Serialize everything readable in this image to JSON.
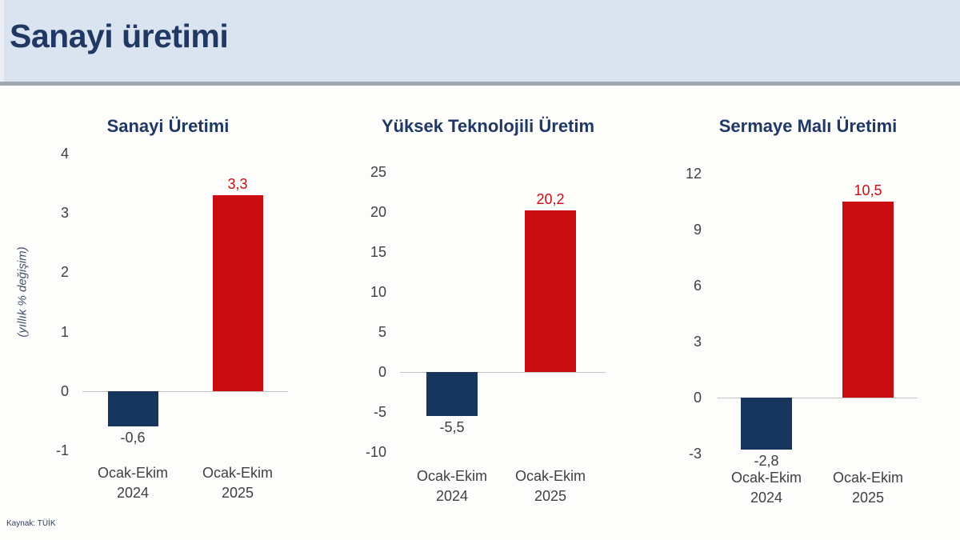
{
  "header": {
    "title": "Sanayi üretimi"
  },
  "footer": {
    "source": "Kaynak: TÜİK"
  },
  "colors": {
    "header_bg": "#dae3f0",
    "header_border": "#a0a8b0",
    "title_navy": "#1f3864",
    "bar_navy": "#17365d",
    "bar_red": "#c90d11",
    "data_label_gray": "#404040",
    "axis_tick_gray": "#404040",
    "zero_line_gray": "#c6c6c6"
  },
  "chart_data": [
    {
      "type": "bar",
      "title": "Sanayi Üretimi",
      "ylabel": "(yıllık % değişim)",
      "xlabel": "",
      "categories": [
        [
          "Ocak-Ekim",
          "2024"
        ],
        [
          "Ocak-Ekim",
          "2025"
        ]
      ],
      "values": [
        -0.6,
        3.3
      ],
      "value_labels": [
        "-0,6",
        "3,3"
      ],
      "series_colors": [
        "#17365d",
        "#c90d11"
      ],
      "label_colors": [
        "#404040",
        "#c90d11"
      ],
      "ylim": [
        -1,
        4
      ],
      "yticks": [
        4,
        3,
        2,
        1,
        0,
        -1
      ],
      "grid": false,
      "legend": "none"
    },
    {
      "type": "bar",
      "title": "Yüksek Teknolojili Üretim",
      "ylabel": "",
      "xlabel": "",
      "categories": [
        [
          "Ocak-Ekim",
          "2024"
        ],
        [
          "Ocak-Ekim",
          "2025"
        ]
      ],
      "values": [
        -5.5,
        20.2
      ],
      "value_labels": [
        "-5,5",
        "20,2"
      ],
      "series_colors": [
        "#17365d",
        "#c90d11"
      ],
      "label_colors": [
        "#404040",
        "#c90d11"
      ],
      "ylim": [
        -10,
        25
      ],
      "yticks": [
        25,
        20,
        15,
        10,
        5,
        0,
        -5,
        -10
      ],
      "grid": false,
      "legend": "none"
    },
    {
      "type": "bar",
      "title": "Sermaye Malı Üretimi",
      "ylabel": "",
      "xlabel": "",
      "categories": [
        [
          "Ocak-Ekim",
          "2024"
        ],
        [
          "Ocak-Ekim",
          "2025"
        ]
      ],
      "values": [
        -2.8,
        10.5
      ],
      "value_labels": [
        "-2,8",
        "10,5"
      ],
      "series_colors": [
        "#17365d",
        "#c90d11"
      ],
      "label_colors": [
        "#404040",
        "#c90d11"
      ],
      "ylim": [
        -3,
        12
      ],
      "yticks": [
        12,
        9,
        6,
        3,
        0,
        -3
      ],
      "grid": false,
      "legend": "none"
    }
  ]
}
